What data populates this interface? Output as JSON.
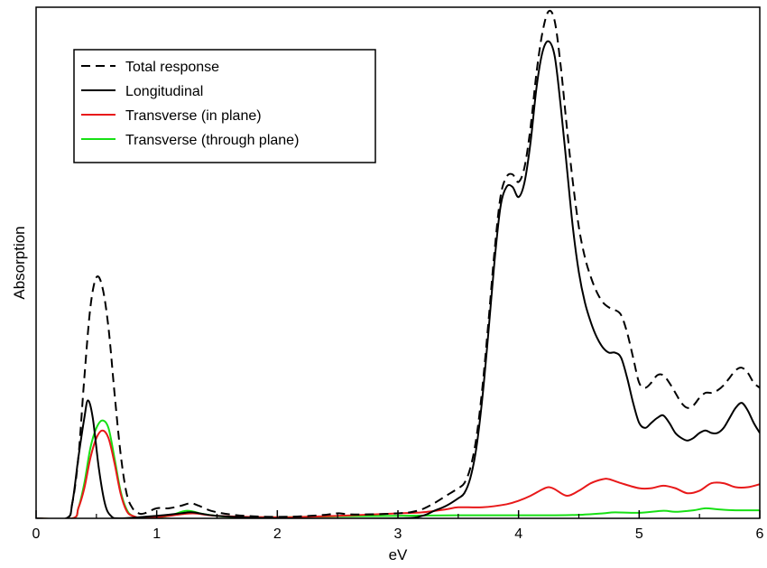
{
  "chart_data": {
    "type": "line",
    "xlabel": "eV",
    "ylabel": "Absorption",
    "xlim": [
      0,
      6
    ],
    "ylim": [
      0,
      1.0
    ],
    "xticks": [
      "0",
      "1",
      "2",
      "3",
      "4",
      "5",
      "6"
    ],
    "y_tick_labels_shown": false,
    "grid": false,
    "legend": {
      "position": "top-left",
      "entries": [
        "Total response",
        "Longitudinal",
        "Transverse (in plane)",
        "Transverse (through plane)"
      ]
    },
    "series": [
      {
        "name": "Total response",
        "color": "#000000",
        "dash": "dashed",
        "points": [
          [
            0.0,
            0.0
          ],
          [
            0.25,
            0.0
          ],
          [
            0.3,
            0.03
          ],
          [
            0.35,
            0.12
          ],
          [
            0.4,
            0.28
          ],
          [
            0.45,
            0.42
          ],
          [
            0.5,
            0.48
          ],
          [
            0.55,
            0.46
          ],
          [
            0.6,
            0.38
          ],
          [
            0.65,
            0.25
          ],
          [
            0.7,
            0.13
          ],
          [
            0.75,
            0.05
          ],
          [
            0.8,
            0.02
          ],
          [
            0.85,
            0.01
          ],
          [
            0.9,
            0.01
          ],
          [
            1.0,
            0.02
          ],
          [
            1.1,
            0.02
          ],
          [
            1.2,
            0.025
          ],
          [
            1.28,
            0.03
          ],
          [
            1.35,
            0.025
          ],
          [
            1.45,
            0.015
          ],
          [
            1.6,
            0.008
          ],
          [
            1.8,
            0.004
          ],
          [
            2.0,
            0.003
          ],
          [
            2.2,
            0.004
          ],
          [
            2.4,
            0.007
          ],
          [
            2.5,
            0.01
          ],
          [
            2.6,
            0.008
          ],
          [
            2.8,
            0.008
          ],
          [
            3.0,
            0.01
          ],
          [
            3.1,
            0.012
          ],
          [
            3.2,
            0.018
          ],
          [
            3.3,
            0.03
          ],
          [
            3.4,
            0.045
          ],
          [
            3.5,
            0.06
          ],
          [
            3.55,
            0.07
          ],
          [
            3.6,
            0.1
          ],
          [
            3.65,
            0.16
          ],
          [
            3.7,
            0.26
          ],
          [
            3.75,
            0.39
          ],
          [
            3.8,
            0.53
          ],
          [
            3.85,
            0.64
          ],
          [
            3.9,
            0.68
          ],
          [
            3.95,
            0.685
          ],
          [
            4.0,
            0.67
          ],
          [
            4.05,
            0.7
          ],
          [
            4.1,
            0.78
          ],
          [
            4.15,
            0.89
          ],
          [
            4.2,
            0.97
          ],
          [
            4.25,
            1.01
          ],
          [
            4.3,
            0.99
          ],
          [
            4.35,
            0.9
          ],
          [
            4.4,
            0.78
          ],
          [
            4.45,
            0.67
          ],
          [
            4.5,
            0.58
          ],
          [
            4.55,
            0.52
          ],
          [
            4.6,
            0.48
          ],
          [
            4.65,
            0.45
          ],
          [
            4.7,
            0.43
          ],
          [
            4.75,
            0.42
          ],
          [
            4.8,
            0.415
          ],
          [
            4.85,
            0.405
          ],
          [
            4.9,
            0.37
          ],
          [
            4.95,
            0.32
          ],
          [
            5.0,
            0.27
          ],
          [
            5.05,
            0.26
          ],
          [
            5.1,
            0.27
          ],
          [
            5.15,
            0.285
          ],
          [
            5.2,
            0.285
          ],
          [
            5.25,
            0.27
          ],
          [
            5.3,
            0.25
          ],
          [
            5.35,
            0.23
          ],
          [
            5.4,
            0.22
          ],
          [
            5.45,
            0.225
          ],
          [
            5.5,
            0.24
          ],
          [
            5.55,
            0.25
          ],
          [
            5.6,
            0.25
          ],
          [
            5.65,
            0.255
          ],
          [
            5.7,
            0.265
          ],
          [
            5.75,
            0.28
          ],
          [
            5.8,
            0.295
          ],
          [
            5.85,
            0.3
          ],
          [
            5.9,
            0.29
          ],
          [
            5.95,
            0.27
          ],
          [
            6.0,
            0.26
          ]
        ]
      },
      {
        "name": "Longitudinal",
        "color": "#000000",
        "dash": "solid",
        "points": [
          [
            0.0,
            0.0
          ],
          [
            0.25,
            0.0
          ],
          [
            0.3,
            0.03
          ],
          [
            0.35,
            0.12
          ],
          [
            0.4,
            0.2
          ],
          [
            0.43,
            0.235
          ],
          [
            0.47,
            0.2
          ],
          [
            0.52,
            0.1
          ],
          [
            0.57,
            0.03
          ],
          [
            0.62,
            0.005
          ],
          [
            0.7,
            0.0
          ],
          [
            1.0,
            0.005
          ],
          [
            1.2,
            0.01
          ],
          [
            1.3,
            0.012
          ],
          [
            1.5,
            0.005
          ],
          [
            2.0,
            0.0
          ],
          [
            3.0,
            0.0
          ],
          [
            3.2,
            0.005
          ],
          [
            3.3,
            0.015
          ],
          [
            3.4,
            0.025
          ],
          [
            3.5,
            0.04
          ],
          [
            3.55,
            0.05
          ],
          [
            3.6,
            0.08
          ],
          [
            3.65,
            0.14
          ],
          [
            3.7,
            0.24
          ],
          [
            3.75,
            0.37
          ],
          [
            3.8,
            0.51
          ],
          [
            3.85,
            0.62
          ],
          [
            3.9,
            0.66
          ],
          [
            3.95,
            0.66
          ],
          [
            4.0,
            0.64
          ],
          [
            4.05,
            0.67
          ],
          [
            4.1,
            0.75
          ],
          [
            4.15,
            0.86
          ],
          [
            4.2,
            0.93
          ],
          [
            4.25,
            0.95
          ],
          [
            4.3,
            0.92
          ],
          [
            4.35,
            0.82
          ],
          [
            4.4,
            0.7
          ],
          [
            4.45,
            0.58
          ],
          [
            4.5,
            0.49
          ],
          [
            4.55,
            0.43
          ],
          [
            4.6,
            0.39
          ],
          [
            4.65,
            0.36
          ],
          [
            4.7,
            0.34
          ],
          [
            4.75,
            0.33
          ],
          [
            4.8,
            0.33
          ],
          [
            4.85,
            0.32
          ],
          [
            4.9,
            0.28
          ],
          [
            4.95,
            0.23
          ],
          [
            5.0,
            0.19
          ],
          [
            5.05,
            0.18
          ],
          [
            5.1,
            0.19
          ],
          [
            5.15,
            0.2
          ],
          [
            5.2,
            0.205
          ],
          [
            5.25,
            0.19
          ],
          [
            5.3,
            0.17
          ],
          [
            5.35,
            0.16
          ],
          [
            5.4,
            0.155
          ],
          [
            5.45,
            0.16
          ],
          [
            5.5,
            0.17
          ],
          [
            5.55,
            0.175
          ],
          [
            5.6,
            0.17
          ],
          [
            5.65,
            0.17
          ],
          [
            5.7,
            0.18
          ],
          [
            5.75,
            0.2
          ],
          [
            5.8,
            0.22
          ],
          [
            5.85,
            0.23
          ],
          [
            5.9,
            0.215
          ],
          [
            5.95,
            0.19
          ],
          [
            6.0,
            0.17
          ]
        ]
      },
      {
        "name": "Transverse (in plane)",
        "color": "#e8191a",
        "dash": "solid",
        "points": [
          [
            0.0,
            0.0
          ],
          [
            0.3,
            0.0
          ],
          [
            0.35,
            0.02
          ],
          [
            0.4,
            0.06
          ],
          [
            0.45,
            0.12
          ],
          [
            0.5,
            0.16
          ],
          [
            0.55,
            0.175
          ],
          [
            0.6,
            0.16
          ],
          [
            0.65,
            0.11
          ],
          [
            0.7,
            0.05
          ],
          [
            0.75,
            0.015
          ],
          [
            0.8,
            0.005
          ],
          [
            0.9,
            0.0
          ],
          [
            1.1,
            0.005
          ],
          [
            1.3,
            0.01
          ],
          [
            1.5,
            0.005
          ],
          [
            2.0,
            0.002
          ],
          [
            2.5,
            0.005
          ],
          [
            3.0,
            0.01
          ],
          [
            3.2,
            0.012
          ],
          [
            3.4,
            0.018
          ],
          [
            3.5,
            0.022
          ],
          [
            3.7,
            0.022
          ],
          [
            3.9,
            0.028
          ],
          [
            4.0,
            0.035
          ],
          [
            4.1,
            0.045
          ],
          [
            4.2,
            0.058
          ],
          [
            4.25,
            0.062
          ],
          [
            4.3,
            0.058
          ],
          [
            4.4,
            0.045
          ],
          [
            4.5,
            0.055
          ],
          [
            4.6,
            0.07
          ],
          [
            4.7,
            0.078
          ],
          [
            4.75,
            0.078
          ],
          [
            4.85,
            0.07
          ],
          [
            5.0,
            0.06
          ],
          [
            5.1,
            0.06
          ],
          [
            5.2,
            0.065
          ],
          [
            5.3,
            0.06
          ],
          [
            5.4,
            0.05
          ],
          [
            5.5,
            0.055
          ],
          [
            5.6,
            0.07
          ],
          [
            5.7,
            0.07
          ],
          [
            5.8,
            0.062
          ],
          [
            5.9,
            0.062
          ],
          [
            6.0,
            0.068
          ]
        ]
      },
      {
        "name": "Transverse (through plane)",
        "color": "#17e014",
        "dash": "solid",
        "points": [
          [
            0.0,
            0.0
          ],
          [
            0.3,
            0.0
          ],
          [
            0.35,
            0.02
          ],
          [
            0.4,
            0.07
          ],
          [
            0.45,
            0.14
          ],
          [
            0.5,
            0.18
          ],
          [
            0.55,
            0.195
          ],
          [
            0.6,
            0.18
          ],
          [
            0.65,
            0.12
          ],
          [
            0.7,
            0.055
          ],
          [
            0.75,
            0.018
          ],
          [
            0.8,
            0.005
          ],
          [
            0.9,
            0.0
          ],
          [
            1.1,
            0.005
          ],
          [
            1.25,
            0.015
          ],
          [
            1.4,
            0.008
          ],
          [
            1.6,
            0.003
          ],
          [
            2.0,
            0.002
          ],
          [
            2.5,
            0.004
          ],
          [
            3.0,
            0.005
          ],
          [
            3.5,
            0.006
          ],
          [
            4.0,
            0.006
          ],
          [
            4.3,
            0.006
          ],
          [
            4.5,
            0.007
          ],
          [
            4.7,
            0.01
          ],
          [
            4.8,
            0.012
          ],
          [
            5.0,
            0.011
          ],
          [
            5.2,
            0.015
          ],
          [
            5.3,
            0.013
          ],
          [
            5.45,
            0.016
          ],
          [
            5.55,
            0.02
          ],
          [
            5.65,
            0.018
          ],
          [
            5.8,
            0.016
          ],
          [
            6.0,
            0.016
          ]
        ]
      }
    ]
  }
}
